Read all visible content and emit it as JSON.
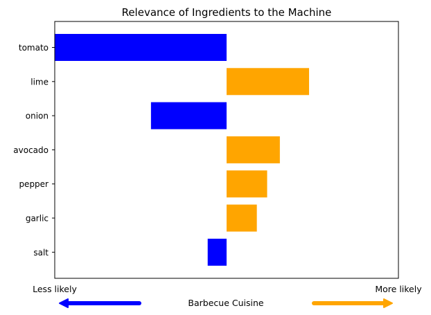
{
  "chart_data": {
    "type": "bar",
    "orientation": "horizontal",
    "title": "Relevance of Ingredients to the Machine",
    "xlabel": "Barbecue Cuisine",
    "left_label": "Less likely",
    "right_label": "More likely",
    "categories": [
      "tomato",
      "lime",
      "onion",
      "avocado",
      "pepper",
      "garlic",
      "salt"
    ],
    "values": [
      -0.5,
      0.24,
      -0.22,
      0.155,
      0.118,
      0.088,
      -0.055
    ],
    "xlim": [
      -0.5,
      0.5
    ],
    "negative_color": "#0000ff",
    "positive_color": "#ffa500",
    "grid": false,
    "legend": "none"
  }
}
